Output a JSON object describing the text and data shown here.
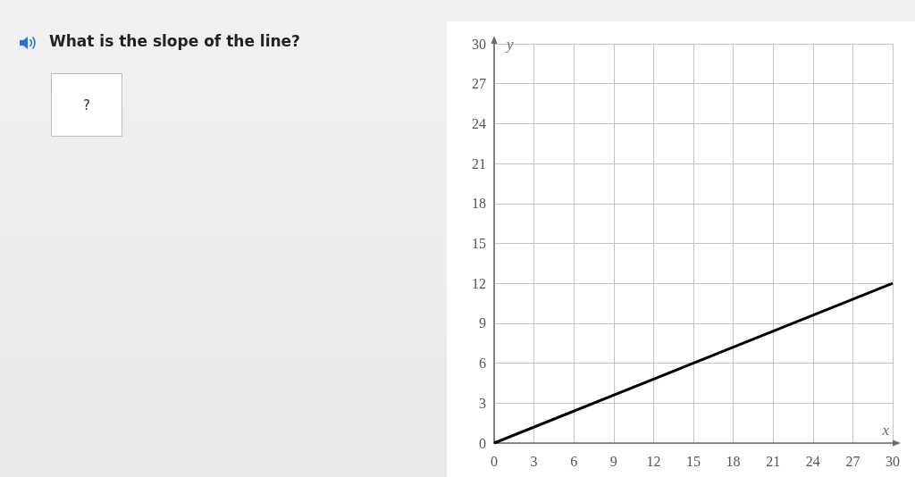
{
  "chart_data": {
    "type": "line",
    "title": "What is the slope of the line?",
    "xlabel": "x",
    "ylabel": "y",
    "annotations": [
      "?"
    ],
    "x": [
      0,
      30
    ],
    "values": [
      0,
      12
    ],
    "color": "#000000",
    "xlim": [
      0,
      30
    ],
    "ylim": [
      0,
      30
    ],
    "xticks": [
      0,
      3,
      6,
      9,
      12,
      15,
      18,
      21,
      24,
      27,
      30
    ],
    "yticks": [
      0,
      3,
      6,
      9,
      12,
      15,
      18,
      21,
      24,
      27,
      30
    ],
    "grid": true
  }
}
